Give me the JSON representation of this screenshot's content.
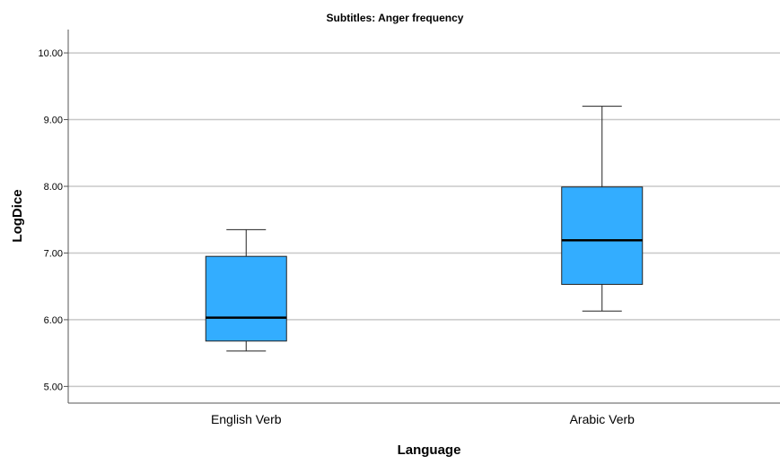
{
  "chart_data": {
    "type": "box",
    "title": "Subtitles: Anger frequency",
    "xlabel": "Language",
    "ylabel": "LogDice",
    "ylim": [
      4.75,
      10.35
    ],
    "yticks": [
      "5.00",
      "6.00",
      "7.00",
      "8.00",
      "9.00",
      "10.00"
    ],
    "ytick_values": [
      5,
      6,
      7,
      8,
      9,
      10
    ],
    "grid": "horizontal",
    "box_color": "#33adff",
    "categories": [
      "English Verb",
      "Arabic Verb"
    ],
    "boxes": [
      {
        "category": "English Verb",
        "min": 5.53,
        "q1": 5.68,
        "median": 6.03,
        "q3": 6.95,
        "max": 7.35
      },
      {
        "category": "Arabic Verb",
        "min": 6.13,
        "q1": 6.53,
        "median": 7.19,
        "q3": 7.99,
        "max": 9.2
      }
    ]
  }
}
